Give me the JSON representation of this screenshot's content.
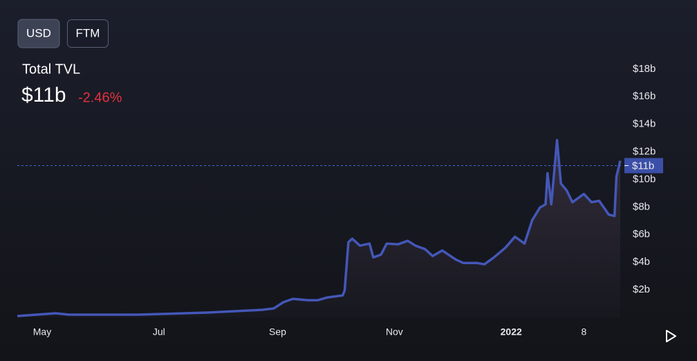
{
  "header": {
    "buttons": [
      "USD",
      "FTM"
    ]
  },
  "chart_data": {
    "type": "area",
    "title": "Total TVL",
    "value_label": "$11b",
    "change_label": "-2.46%",
    "color": "#4457b8",
    "x": [
      0,
      20,
      27,
      63,
      99,
      128,
      134,
      139,
      144,
      152,
      157,
      162,
      170,
      171,
      173,
      175,
      179,
      184,
      186,
      190,
      193,
      199,
      204,
      208,
      213,
      217,
      222,
      229,
      233,
      240,
      244,
      249,
      255,
      260,
      265,
      269,
      273,
      276,
      277,
      279,
      282,
      284,
      287,
      290,
      296,
      300,
      304,
      309,
      312,
      313,
      315
    ],
    "values": [
      0.1,
      0.3,
      0.2,
      0.2,
      0.35,
      0.55,
      0.65,
      1.1,
      1.35,
      1.25,
      1.25,
      1.45,
      1.6,
      1.95,
      5.45,
      5.7,
      5.2,
      5.35,
      4.35,
      4.55,
      5.35,
      5.3,
      5.55,
      5.2,
      4.95,
      4.45,
      4.85,
      4.2,
      3.95,
      3.95,
      3.85,
      4.35,
      5.05,
      5.85,
      5.35,
      7.05,
      7.95,
      8.2,
      10.45,
      8.2,
      12.85,
      9.7,
      9.2,
      8.35,
      8.95,
      8.35,
      8.45,
      7.45,
      7.35,
      10.2,
      11.35
    ],
    "xlim": [
      0,
      315
    ],
    "xticks": [
      {
        "value": 13,
        "label": "May"
      },
      {
        "value": 74,
        "label": "Jul"
      },
      {
        "value": 136,
        "label": "Sep"
      },
      {
        "value": 197,
        "label": "Nov"
      },
      {
        "value": 258,
        "label": "2022"
      },
      {
        "value": 296,
        "label": "8"
      }
    ],
    "ylim": [
      0,
      23
    ],
    "yticks": [
      {
        "value": 2,
        "label": "$2b"
      },
      {
        "value": 4,
        "label": "$4b"
      },
      {
        "value": 6,
        "label": "$6b"
      },
      {
        "value": 8,
        "label": "$8b"
      },
      {
        "value": 10,
        "label": "$10b"
      },
      {
        "value": 12,
        "label": "$12b"
      },
      {
        "value": 14,
        "label": "$14b"
      },
      {
        "value": 16,
        "label": "$16b"
      },
      {
        "value": 18,
        "label": "$18b"
      }
    ],
    "current_marker": {
      "value": 11,
      "label": "$11b"
    }
  }
}
